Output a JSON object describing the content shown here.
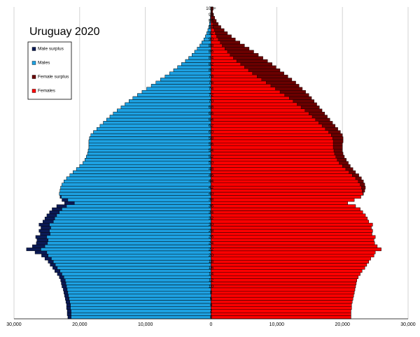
{
  "chart_data": {
    "type": "pyramid",
    "title": "Uruguay 2020",
    "categories": [
      "0",
      null,
      "2",
      null,
      "4",
      null,
      "6",
      null,
      "8",
      null,
      "10",
      null,
      "12",
      null,
      "14",
      null,
      "16",
      null,
      "18",
      null,
      "20",
      null,
      "22",
      null,
      "24",
      null,
      "26",
      null,
      "28",
      null,
      "30",
      null,
      "32",
      null,
      "34",
      null,
      "36",
      null,
      "38",
      null,
      "40",
      null,
      "42",
      null,
      "44",
      null,
      "46",
      null,
      "48",
      null,
      "50",
      null,
      "52",
      null,
      "54",
      null,
      "56",
      null,
      "58",
      null,
      "60",
      null,
      "62",
      null,
      "64",
      null,
      "66",
      null,
      "68",
      null,
      "70",
      null,
      "72",
      null,
      "74",
      null,
      "76",
      null,
      "78",
      null,
      "80",
      null,
      "82",
      null,
      "84",
      null,
      "86",
      null,
      "88",
      null,
      "90",
      null,
      "92",
      null,
      "94",
      null,
      "96",
      null,
      "98",
      null,
      "100+"
    ],
    "series": [
      {
        "name": "Males",
        "color": "#1da1e2",
        "surplus_color": "#0b1a55",
        "side": "left",
        "values": [
          21800,
          21900,
          21900,
          22000,
          22000,
          22100,
          22200,
          22300,
          22400,
          22500,
          22700,
          22800,
          22900,
          23100,
          23400,
          23800,
          24100,
          24500,
          24800,
          25300,
          25800,
          26800,
          28100,
          27200,
          26600,
          26500,
          26700,
          26000,
          26200,
          25900,
          26200,
          25600,
          25300,
          25000,
          24600,
          24200,
          23500,
          22300,
          22700,
          23000,
          23100,
          23000,
          22900,
          22700,
          22400,
          22000,
          21500,
          21000,
          20500,
          20000,
          19500,
          19200,
          19000,
          18800,
          18700,
          18600,
          18600,
          18600,
          18500,
          18300,
          17900,
          17400,
          16900,
          16400,
          15900,
          15400,
          14900,
          14300,
          13700,
          13100,
          12500,
          11900,
          11200,
          10500,
          9800,
          9100,
          8400,
          7700,
          7000,
          6300,
          5700,
          5100,
          4500,
          3900,
          3400,
          2900,
          2500,
          2100,
          1700,
          1400,
          1100,
          850,
          650,
          480,
          350,
          250,
          170,
          110,
          70,
          40,
          60
        ]
      },
      {
        "name": "Females",
        "color": "#ff0000",
        "surplus_color": "#6b0000",
        "side": "right",
        "values": [
          21300,
          21300,
          21300,
          21400,
          21400,
          21500,
          21600,
          21700,
          21800,
          21900,
          22000,
          22100,
          22200,
          22400,
          22700,
          23000,
          23400,
          23700,
          24000,
          24300,
          24800,
          25000,
          25900,
          25300,
          24900,
          24800,
          25000,
          24500,
          24600,
          24400,
          24600,
          24000,
          23800,
          23500,
          23100,
          22700,
          22000,
          20800,
          21800,
          22800,
          23200,
          23400,
          23500,
          23400,
          23200,
          22900,
          22500,
          22000,
          21600,
          21200,
          20900,
          20600,
          20300,
          20100,
          20000,
          20000,
          20000,
          20100,
          20100,
          20000,
          19700,
          19300,
          18900,
          18500,
          18100,
          17700,
          17300,
          16900,
          16500,
          16100,
          15700,
          15300,
          14900,
          14400,
          13900,
          13400,
          12900,
          12300,
          11700,
          11100,
          10500,
          9900,
          9300,
          8600,
          7900,
          7200,
          6500,
          5800,
          5100,
          4400,
          3700,
          3100,
          2500,
          2000,
          1500,
          1100,
          800,
          550,
          380,
          250,
          350
        ]
      }
    ],
    "legend": [
      "Male surplus",
      "Males",
      "Female surplus",
      "Females"
    ],
    "xlim": [
      -30000,
      30000
    ],
    "xticks": [
      {
        "value": -30000,
        "label": "30,000"
      },
      {
        "value": -20000,
        "label": "20,000"
      },
      {
        "value": -10000,
        "label": "10,000"
      },
      0,
      {
        "value": 10000,
        "label": "10,000"
      },
      {
        "value": 20000,
        "label": "20,000"
      },
      {
        "value": 30000,
        "label": "30,000"
      }
    ],
    "grid": true
  }
}
